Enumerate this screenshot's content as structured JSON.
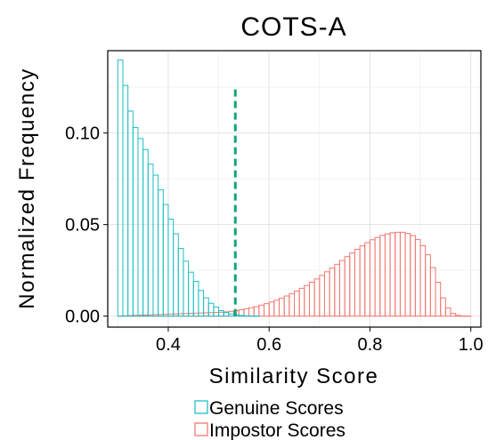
{
  "chart_data": {
    "type": "histogram",
    "title": "COTS-A",
    "xlabel": "Similarity Score",
    "ylabel": "Normalized Frequency",
    "xlim": [
      0.28,
      1.02
    ],
    "ylim": [
      -0.006,
      0.145
    ],
    "x_ticks": [
      0.4,
      0.6,
      0.8,
      1.0
    ],
    "x_tick_labels": [
      "0.4",
      "0.6",
      "0.8",
      "1.0"
    ],
    "y_ticks": [
      0.0,
      0.05,
      0.1
    ],
    "y_tick_labels": [
      "0.00",
      "0.05",
      "0.10"
    ],
    "grid": true,
    "legend": "bottom",
    "bin_start": 0.3,
    "bin_width": 0.01,
    "series": [
      {
        "name": "Genuine Scores",
        "color": "#1fbfc4",
        "values": [
          0.14,
          0.126,
          0.112,
          0.103,
          0.097,
          0.091,
          0.083,
          0.077,
          0.069,
          0.061,
          0.053,
          0.045,
          0.037,
          0.03,
          0.024,
          0.019,
          0.014,
          0.01,
          0.007,
          0.005,
          0.003,
          0.002,
          0.0012,
          0.0007,
          0.0004,
          0.0002,
          0.0001,
          5e-05
        ]
      },
      {
        "name": "Impostor Scores",
        "color": "#f07870",
        "values": [
          0.0001,
          0.0002,
          0.0003,
          0.0004,
          0.0005,
          0.0006,
          0.0007,
          0.0008,
          0.0009,
          0.001,
          0.0011,
          0.0012,
          0.0013,
          0.0014,
          0.0015,
          0.0016,
          0.0017,
          0.0018,
          0.0019,
          0.002,
          0.0021,
          0.0023,
          0.0026,
          0.003,
          0.0035,
          0.004,
          0.0046,
          0.0052,
          0.006,
          0.0068,
          0.0077,
          0.0087,
          0.0098,
          0.011,
          0.0123,
          0.0137,
          0.0152,
          0.0168,
          0.0185,
          0.0203,
          0.0222,
          0.0242,
          0.0262,
          0.0283,
          0.0304,
          0.0325,
          0.0345,
          0.0365,
          0.0384,
          0.0401,
          0.0417,
          0.043,
          0.0441,
          0.0449,
          0.0455,
          0.0458,
          0.0458,
          0.0452,
          0.044,
          0.0418,
          0.0385,
          0.0335,
          0.0265,
          0.0185,
          0.01,
          0.0045,
          0.0015,
          0.0004,
          0.0001,
          5e-05
        ]
      }
    ],
    "threshold": {
      "x": 0.533,
      "y_top": 0.124,
      "color": "#13a37a"
    }
  }
}
